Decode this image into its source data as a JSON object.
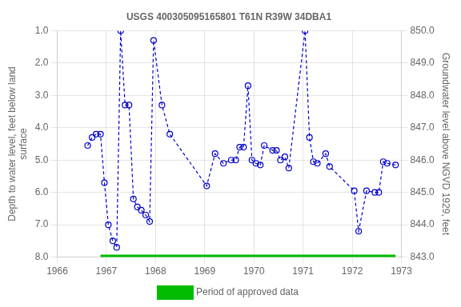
{
  "chart_data": {
    "type": "line",
    "title": "USGS 400305095165801 T61N R39W 34DBA1",
    "ylabel": "Depth to water level, feet below land\nsurface",
    "y2label": "Groundwater level above NGVD 1929, feet",
    "x": [
      1966.62,
      1966.71,
      1966.79,
      1966.88,
      1966.96,
      1967.04,
      1967.13,
      1967.21,
      1967.29,
      1967.38,
      1967.46,
      1967.55,
      1967.63,
      1967.71,
      1967.8,
      1967.88,
      1967.96,
      1968.13,
      1968.29,
      1969.04,
      1969.21,
      1969.38,
      1969.54,
      1969.63,
      1969.71,
      1969.79,
      1969.88,
      1969.96,
      1970.04,
      1970.13,
      1970.21,
      1970.38,
      1970.46,
      1970.54,
      1970.63,
      1970.71,
      1971.04,
      1971.13,
      1971.21,
      1971.29,
      1971.46,
      1971.54,
      1972.04,
      1972.13,
      1972.29,
      1972.46,
      1972.54,
      1972.63,
      1972.71,
      1972.88
    ],
    "series": [
      {
        "color": "#0000cc",
        "line_style": "dashed",
        "marker": "circle",
        "values": [
          4.55,
          4.3,
          4.2,
          4.2,
          5.7,
          7.0,
          7.5,
          7.7,
          1.0,
          3.3,
          3.3,
          6.2,
          6.45,
          6.55,
          6.7,
          6.9,
          1.3,
          3.3,
          4.2,
          5.8,
          4.8,
          5.1,
          5.0,
          5.0,
          4.6,
          4.6,
          2.7,
          5.0,
          5.1,
          5.15,
          4.55,
          4.7,
          4.7,
          5.0,
          4.9,
          5.25,
          1.0,
          4.3,
          5.05,
          5.1,
          4.8,
          5.2,
          5.95,
          7.2,
          5.95,
          6.0,
          6.0,
          5.05,
          5.1,
          5.15
        ]
      },
      {
        "name": "Period of approved data",
        "color": "#00bb00",
        "line_style": "solid",
        "marker": "none",
        "x": [
          1966.88,
          1972.88
        ],
        "values": [
          8.0,
          8.0
        ]
      }
    ],
    "xlim": [
      1966,
      1973
    ],
    "xticks": [
      1966,
      1967,
      1968,
      1969,
      1970,
      1971,
      1972,
      1973
    ],
    "ylim": [
      8.0,
      1.0
    ],
    "yticks": [
      {
        "value": 1.0,
        "label": "1.0"
      },
      {
        "value": 2.0,
        "label": "2.0"
      },
      {
        "value": 3.0,
        "label": "3.0"
      },
      {
        "value": 4.0,
        "label": "4.0"
      },
      {
        "value": 5.0,
        "label": "5.0"
      },
      {
        "value": 6.0,
        "label": "6.0"
      },
      {
        "value": 7.0,
        "label": "7.0"
      },
      {
        "value": 8.0,
        "label": "8.0"
      }
    ],
    "y2lim": [
      843.0,
      850.0
    ],
    "y2ticks": [
      {
        "value": 843.0,
        "label": "843.0"
      },
      {
        "value": 844.0,
        "label": "844.0"
      },
      {
        "value": 845.0,
        "label": "845.0"
      },
      {
        "value": 846.0,
        "label": "846.0"
      },
      {
        "value": 847.0,
        "label": "847.0"
      },
      {
        "value": 848.0,
        "label": "848.0"
      },
      {
        "value": 849.0,
        "label": "849.0"
      },
      {
        "value": 850.0,
        "label": "850.0"
      }
    ],
    "grid": true,
    "legend": "bottom"
  }
}
